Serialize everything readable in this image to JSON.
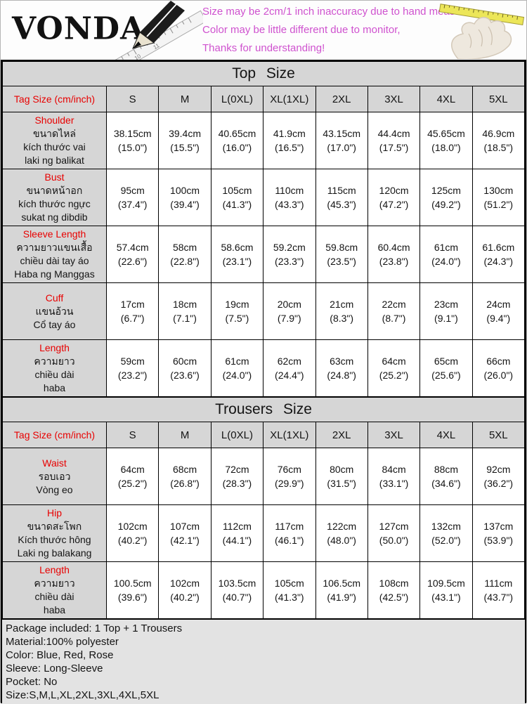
{
  "header": {
    "brand": "VONDA",
    "notes": [
      "Size may be 2cm/1 inch inaccuracy due to hand measure,",
      "Color may be little different due to monitor,",
      "Thanks for understanding!"
    ]
  },
  "colors": {
    "note_pink": "#cf52cf",
    "label_red": "#e80000",
    "cell_gray": "#d6d6d6",
    "tape_yellow": "#ece659"
  },
  "icons": {
    "left": "pencil-ruler",
    "right": "hand-measuring-tape"
  },
  "tag_size_label": "Tag Size (cm/inch)",
  "sizes": [
    "S",
    "M",
    "L(0XL)",
    "XL(1XL)",
    "2XL",
    "3XL",
    "4XL",
    "5XL"
  ],
  "top_table": {
    "title": "Top Size",
    "rows": [
      {
        "label_lines": [
          "Shoulder",
          "ขนาดไหล่",
          "kích thước vai",
          "laki ng balikat"
        ],
        "values": [
          "38.15cm\n(15.0\")",
          "39.4cm\n(15.5\")",
          "40.65cm\n(16.0\")",
          "41.9cm\n(16.5\")",
          "43.15cm\n(17.0\")",
          "44.4cm\n(17.5\")",
          "45.65cm\n(18.0\")",
          "46.9cm\n(18.5\")"
        ]
      },
      {
        "label_lines": [
          "Bust",
          "ขนาดหน้าอก",
          "kích thước ngực",
          "sukat ng dibdib"
        ],
        "values": [
          "95cm\n(37.4\")",
          "100cm\n(39.4\")",
          "105cm\n(41.3\")",
          "110cm\n(43.3\")",
          "115cm\n(45.3\")",
          "120cm\n(47.2\")",
          "125cm\n(49.2\")",
          "130cm\n(51.2\")"
        ]
      },
      {
        "label_lines": [
          "Sleeve Length",
          "ความยาวแขนเสื้อ",
          "chiều dài tay áo",
          "Haba ng Manggas"
        ],
        "values": [
          "57.4cm\n(22.6\")",
          "58cm\n(22.8\")",
          "58.6cm\n(23.1\")",
          "59.2cm\n(23.3\")",
          "59.8cm\n(23.5\")",
          "60.4cm\n(23.8\")",
          "61cm\n(24.0\")",
          "61.6cm\n(24.3\")"
        ]
      },
      {
        "label_lines": [
          "Cuff",
          "แขนอ้วน",
          "Cổ tay áo"
        ],
        "values": [
          "17cm\n(6.7\")",
          "18cm\n(7.1\")",
          "19cm\n(7.5\")",
          "20cm\n(7.9\")",
          "21cm\n(8.3\")",
          "22cm\n(8.7\")",
          "23cm\n(9.1\")",
          "24cm\n(9.4\")"
        ]
      },
      {
        "label_lines": [
          "Length",
          "ความยาว",
          "chiều dài",
          "haba"
        ],
        "values": [
          "59cm\n(23.2\")",
          "60cm\n(23.6\")",
          "61cm\n(24.0\")",
          "62cm\n(24.4\")",
          "63cm\n(24.8\")",
          "64cm\n(25.2\")",
          "65cm\n(25.6\")",
          "66cm\n(26.0\")"
        ]
      }
    ]
  },
  "trousers_table": {
    "title": "Trousers Size",
    "rows": [
      {
        "label_lines": [
          "Waist",
          "รอบเอว",
          "Vòng eo"
        ],
        "values": [
          "64cm\n(25.2\")",
          "68cm\n(26.8\")",
          "72cm\n(28.3\")",
          "76cm\n(29.9\")",
          "80cm\n(31.5\")",
          "84cm\n(33.1\")",
          "88cm\n(34.6\")",
          "92cm\n(36.2\")"
        ]
      },
      {
        "label_lines": [
          "Hip",
          "ขนาดสะโพก",
          "Kích thước hông",
          "Laki ng balakang"
        ],
        "values": [
          "102cm\n(40.2\")",
          "107cm\n(42.1\")",
          "112cm\n(44.1\")",
          "117cm\n(46.1\")",
          "122cm\n(48.0\")",
          "127cm\n(50.0\")",
          "132cm\n(52.0\")",
          "137cm\n(53.9\")"
        ]
      },
      {
        "label_lines": [
          "Length",
          "ความยาว",
          "chiều dài",
          "haba"
        ],
        "values": [
          "100.5cm\n(39.6\")",
          "102cm\n(40.2\")",
          "103.5cm\n(40.7\")",
          "105cm\n(41.3\")",
          "106.5cm\n(41.9\")",
          "108cm\n(42.5\")",
          "109.5cm\n(43.1\")",
          "111cm\n(43.7\")"
        ]
      }
    ]
  },
  "footer": {
    "lines": [
      "Package included: 1 Top + 1 Trousers",
      "Material:100% polyester",
      "Color: Blue, Red, Rose",
      "Sleeve: Long-Sleeve",
      "Pocket: No",
      "Size:S,M,L,XL,2XL,3XL,4XL,5XL"
    ]
  }
}
